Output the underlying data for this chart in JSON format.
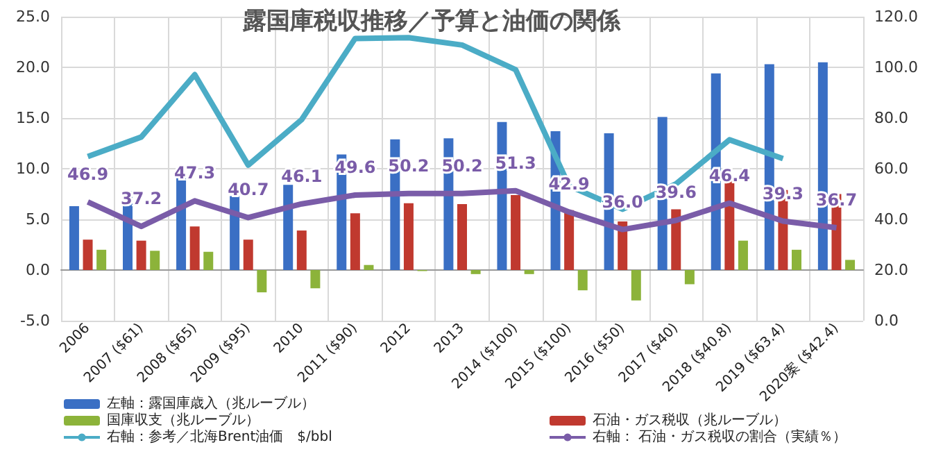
{
  "chart_data": {
    "type": "bar",
    "title": "露国庫税収推移／予算と油価の関係",
    "categories": [
      "2006",
      "2007 ($61)",
      "2008 ($65)",
      "2009 ($95)",
      "2010",
      "2011 ($90)",
      "2012",
      "2013",
      "2014 ($100)",
      "2015 ($100)",
      "2016 ($50)",
      "2017 ($40)",
      "2018 ($40.8)",
      "2019 ($63.4)",
      "2020案 ($42.4)"
    ],
    "series": [
      {
        "name": "左軸：露国庫歳入（兆ルーブル）",
        "color": "#3a6fc4",
        "values": [
          6.3,
          7.8,
          9.3,
          7.3,
          8.4,
          11.4,
          12.9,
          13.0,
          14.6,
          13.7,
          13.5,
          15.1,
          19.4,
          20.3,
          20.5
        ]
      },
      {
        "name": "石油・ガス税収（兆ルーブル）",
        "color": "#c0392f",
        "values": [
          3.0,
          2.9,
          4.3,
          3.0,
          3.9,
          5.6,
          6.6,
          6.5,
          7.4,
          5.9,
          4.8,
          6.0,
          9.1,
          7.9,
          7.5
        ]
      },
      {
        "name": "国庫収支（兆ルーブル）",
        "color": "#8cb33a",
        "values": [
          2.0,
          1.9,
          1.8,
          -2.2,
          -1.8,
          0.5,
          -0.1,
          -0.4,
          -0.4,
          -2.0,
          -3.0,
          -1.4,
          2.9,
          2.0,
          1.0
        ]
      },
      {
        "name": "右軸： 石油・ガス税収の割合（実績％）",
        "type": "line",
        "axis": "y2",
        "color": "#7a5ca8",
        "values": [
          46.9,
          37.2,
          47.3,
          40.7,
          46.1,
          49.6,
          50.2,
          50.2,
          51.3,
          42.9,
          36.0,
          39.6,
          46.4,
          39.3,
          36.7
        ],
        "value_labels": [
          "46.9",
          "37.2",
          "47.3",
          "40.7",
          "46.1",
          "49.6",
          "50.2",
          "50.2",
          "51.3",
          "42.9",
          "36.0",
          "39.6",
          "46.4",
          "39.3",
          "36.7"
        ]
      },
      {
        "name": "右軸：参考／北海Brent油価　$/bbl",
        "type": "line",
        "axis": "y2",
        "color": "#4bacc6",
        "values": [
          64.8,
          72.5,
          97.1,
          61.4,
          79.4,
          111.4,
          111.7,
          108.8,
          99.1,
          53.2,
          44.0,
          54.0,
          71.4,
          64.0,
          null
        ]
      }
    ],
    "ylim": [
      -5,
      25
    ],
    "yticks": [
      {
        "value": -5,
        "label": "-5.0"
      },
      {
        "value": 0,
        "label": "0.0"
      },
      {
        "value": 5,
        "label": "5.0"
      },
      {
        "value": 10,
        "label": "10.0"
      },
      {
        "value": 15,
        "label": "15.0"
      },
      {
        "value": 20,
        "label": "20.0"
      },
      {
        "value": 25,
        "label": "25.0"
      }
    ],
    "y2lim": [
      0,
      120
    ],
    "y2ticks": [
      {
        "value": 0,
        "label": "0.0"
      },
      {
        "value": 20,
        "label": "20.0"
      },
      {
        "value": 40,
        "label": "40.0"
      },
      {
        "value": 60,
        "label": "60.0"
      },
      {
        "value": 80,
        "label": "80.0"
      },
      {
        "value": 100,
        "label": "100.0"
      },
      {
        "value": 120,
        "label": "120.0"
      }
    ],
    "grid": true,
    "legend": "bottom",
    "marker": "none"
  }
}
